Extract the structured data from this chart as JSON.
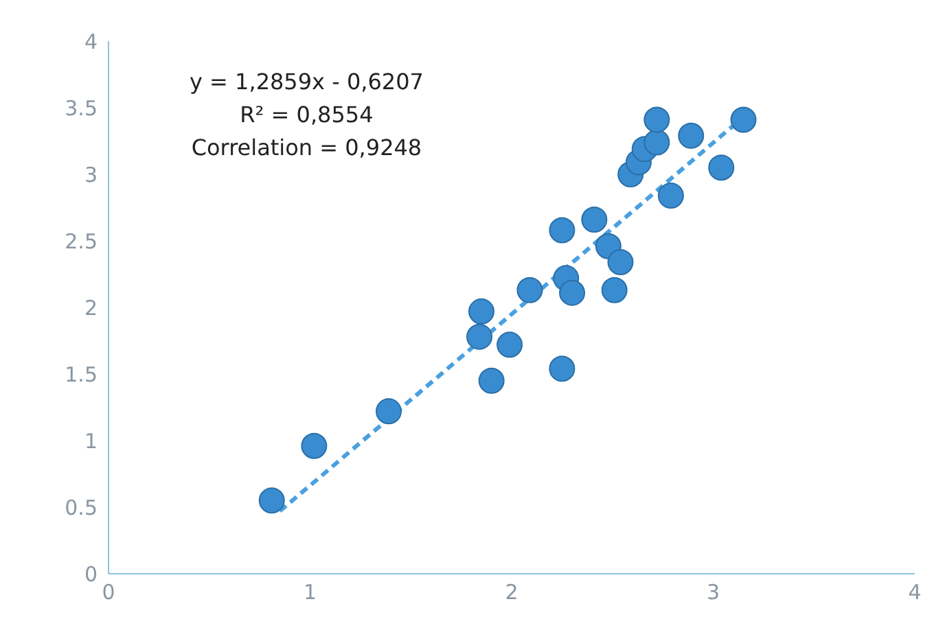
{
  "chart_data": {
    "type": "scatter",
    "annotations": [
      "y = 1,2859x - 0,6207",
      "R² = 0,8554",
      "Correlation =  0,9248"
    ],
    "xlim": [
      0,
      4
    ],
    "xticks": [
      0,
      1,
      2,
      3,
      4
    ],
    "ylim": [
      0,
      4
    ],
    "yticks": [
      0,
      0.5,
      1,
      1.5,
      2,
      2.5,
      3,
      3.5,
      4
    ],
    "grid": false,
    "legend": false,
    "marker": "circle",
    "series": [
      {
        "color": "#3a8cd0",
        "x": [
          0.81,
          1.02,
          1.39,
          1.85,
          1.84,
          1.99,
          1.9,
          2.09,
          2.25,
          2.27,
          2.3,
          2.25,
          2.41,
          2.48,
          2.54,
          2.51,
          2.59,
          2.63,
          2.66,
          2.72,
          2.72,
          2.79,
          2.89,
          3.04,
          3.15
        ],
        "values": [
          0.55,
          0.96,
          1.22,
          1.97,
          1.78,
          1.72,
          1.45,
          2.13,
          2.58,
          2.22,
          2.11,
          1.54,
          2.66,
          2.46,
          2.34,
          2.13,
          3.0,
          3.09,
          3.19,
          3.24,
          3.41,
          2.84,
          3.29,
          3.05,
          3.41
        ]
      },
      {
        "type": "line",
        "color": "#4aa0e0",
        "line_style": "dashed",
        "marker": "none",
        "x": [
          0.85,
          3.15
        ],
        "values": [
          0.47,
          3.43
        ]
      }
    ]
  }
}
